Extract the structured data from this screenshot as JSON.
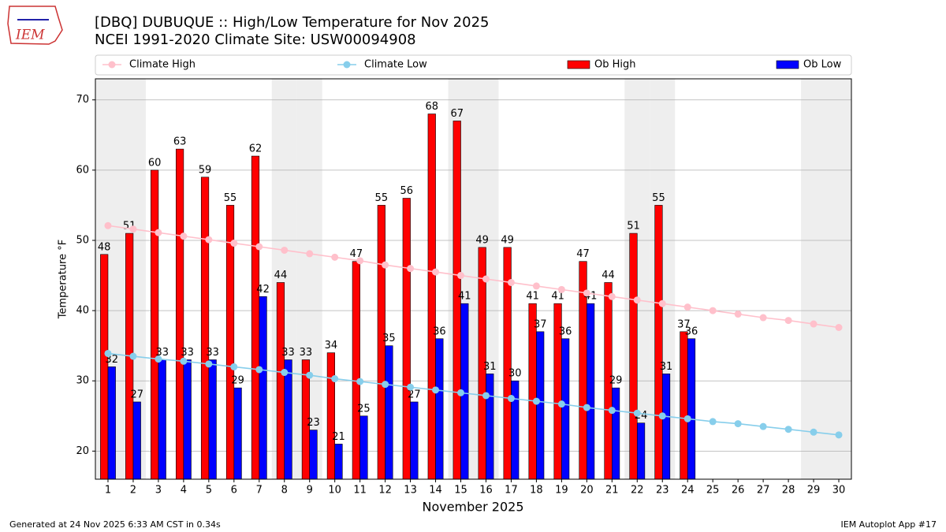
{
  "logo_text": "IEM",
  "chart_data": {
    "type": "bar_line",
    "title": "[DBQ] DUBUQUE :: High/Low Temperature for Nov 2025",
    "subtitle": "NCEI 1991-2020 Climate Site: USW00094908",
    "ylabel": "Temperature °F",
    "xlabel": "November 2025",
    "footer_left": "Generated at 24 Nov 2025 6:33 AM CST in 0.34s",
    "footer_right": "IEM Autoplot App #17",
    "x": [
      1,
      2,
      3,
      4,
      5,
      6,
      7,
      8,
      9,
      10,
      11,
      12,
      13,
      14,
      15,
      16,
      17,
      18,
      19,
      20,
      21,
      22,
      23,
      24,
      25,
      26,
      27,
      28,
      29,
      30
    ],
    "xlim": [
      0.5,
      30.5
    ],
    "xticks": [
      1,
      2,
      3,
      4,
      5,
      6,
      7,
      8,
      9,
      10,
      11,
      12,
      13,
      14,
      15,
      16,
      17,
      18,
      19,
      20,
      21,
      22,
      23,
      24,
      25,
      26,
      27,
      28,
      29,
      30
    ],
    "shaded_x": [
      1,
      2,
      8,
      9,
      15,
      16,
      22,
      23,
      29,
      30
    ],
    "ylim": [
      16,
      73
    ],
    "yticks": [
      20,
      30,
      40,
      50,
      60,
      70
    ],
    "grid": true,
    "series": [
      {
        "name": "Climate High",
        "kind": "line",
        "color": "#ffc0cb",
        "values": [
          52.1,
          51.6,
          51.1,
          50.6,
          50.1,
          49.6,
          49.1,
          48.6,
          48.1,
          47.6,
          47.1,
          46.5,
          46.0,
          45.5,
          45.0,
          44.5,
          44.0,
          43.5,
          43.0,
          42.5,
          42.0,
          41.5,
          41.0,
          40.5,
          40.0,
          39.5,
          39.0,
          38.6,
          38.1,
          37.6
        ]
      },
      {
        "name": "Climate Low",
        "kind": "line",
        "color": "#87ceeb",
        "values": [
          33.9,
          33.5,
          33.1,
          32.8,
          32.4,
          32.0,
          31.6,
          31.2,
          30.8,
          30.3,
          29.9,
          29.5,
          29.1,
          28.7,
          28.3,
          27.9,
          27.5,
          27.1,
          26.7,
          26.2,
          25.8,
          25.4,
          25.0,
          24.6,
          24.2,
          23.9,
          23.5,
          23.1,
          22.7,
          22.3
        ]
      },
      {
        "name": "Ob High",
        "kind": "bar",
        "color": "#ff0000",
        "values": [
          48,
          51,
          60,
          63,
          59,
          55,
          62,
          44,
          33,
          34,
          47,
          55,
          56,
          68,
          67,
          49,
          49,
          41,
          41,
          47,
          44,
          51,
          55,
          37,
          null,
          null,
          null,
          null,
          null,
          null
        ]
      },
      {
        "name": "Ob Low",
        "kind": "bar",
        "color": "#0000ff",
        "values": [
          32,
          27,
          33,
          33,
          33,
          29,
          42,
          33,
          23,
          21,
          25,
          35,
          27,
          36,
          41,
          31,
          30,
          37,
          36,
          41,
          29,
          24,
          31,
          36,
          null,
          null,
          null,
          null,
          null,
          null
        ]
      }
    ]
  }
}
